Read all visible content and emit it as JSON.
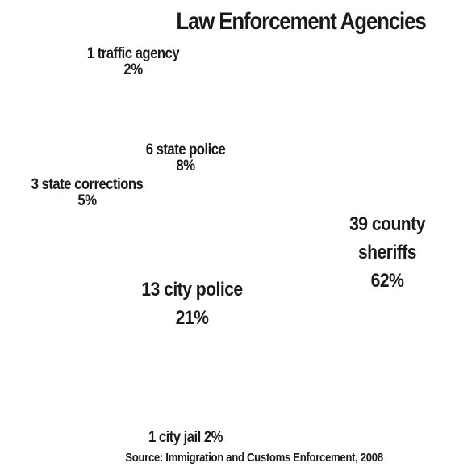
{
  "chart_data": {
    "type": "pie",
    "title": "Law Enforcement Agencies",
    "source": "Source: Immigration and Customs Enforcement, 2008",
    "slices": [
      {
        "label": "1 traffic agency",
        "count": 1,
        "percent_label": "2%",
        "value": 2
      },
      {
        "label": "6 state police",
        "count": 6,
        "percent_label": "8%",
        "value": 8
      },
      {
        "label": "3 state corrections",
        "count": 3,
        "percent_label": "5%",
        "value": 5
      },
      {
        "label": "39 county sheriffs",
        "count": 39,
        "percent_label": "62%",
        "value": 62
      },
      {
        "label": "13 city police",
        "count": 13,
        "percent_label": "21%",
        "value": 21
      },
      {
        "label": "1 city jail 2%",
        "count": 1,
        "percent_label": "",
        "value": 2
      }
    ],
    "county_line1": "39 county",
    "county_line2": "sheriffs"
  }
}
